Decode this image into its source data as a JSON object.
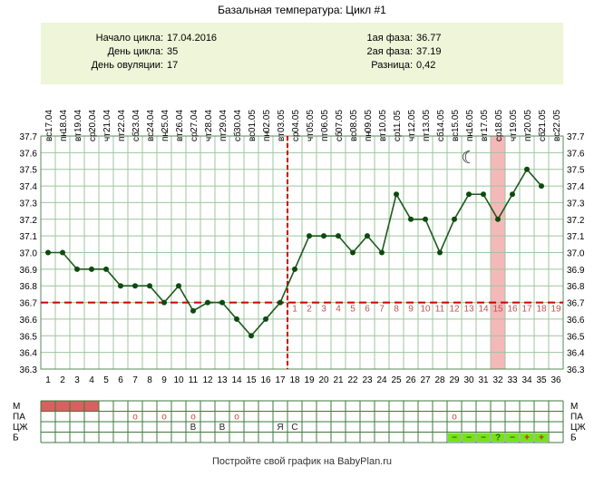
{
  "title": "Базальная температура: Цикл #1",
  "summary": {
    "cycle_start_label": "Начало цикла:",
    "cycle_start_value": "17.04.2016",
    "cycle_day_label": "День цикла:",
    "cycle_day_value": "35",
    "ovulation_day_label": "День овуляции:",
    "ovulation_day_value": "17",
    "phase1_label": "1ая фаза:",
    "phase1_value": "36.77",
    "phase2_label": "2ая фаза:",
    "phase2_value": "37.19",
    "difference_label": "Разница:",
    "difference_value": "0,42"
  },
  "footer": "Постройте свой график на BabyPlan.ru",
  "colors": {
    "line": "#1e5a1e",
    "marker": "#0d4a0d",
    "coverline": "#cc0000",
    "ovulation_line": "#cc0000",
    "highlight": "#f5b8b8",
    "summary_bg": "#eef5d8",
    "grid": "#9fc49f",
    "period": "#d96060",
    "after_ovulation_text": "#c05050",
    "test_cell": "#77e317"
  },
  "chart_data": {
    "type": "line",
    "days": [
      "1",
      "2",
      "3",
      "4",
      "5",
      "6",
      "7",
      "8",
      "9",
      "10",
      "11",
      "12",
      "13",
      "14",
      "15",
      "16",
      "17",
      "18",
      "19",
      "20",
      "21",
      "22",
      "23",
      "24",
      "25",
      "26",
      "27",
      "28",
      "29",
      "30",
      "31",
      "32",
      "33",
      "34",
      "35",
      "36"
    ],
    "weekdays": [
      "вс",
      "пн",
      "вт",
      "ср",
      "чт",
      "пт",
      "сб",
      "вс",
      "пн",
      "вт",
      "ср",
      "чт",
      "пт",
      "сб",
      "вс",
      "пн",
      "вт",
      "ср",
      "чт",
      "пт",
      "сб",
      "вс",
      "пн",
      "вт",
      "ср",
      "чт",
      "пт",
      "сб",
      "вс",
      "пн",
      "вт",
      "ср",
      "чт",
      "пт",
      "сб",
      "вс"
    ],
    "dates": [
      "17.04",
      "18.04",
      "19.04",
      "20.04",
      "21.04",
      "22.04",
      "23.04",
      "24.04",
      "25.04",
      "26.04",
      "27.04",
      "28.04",
      "29.04",
      "30.04",
      "01.05",
      "02.05",
      "03.05",
      "04.05",
      "05.05",
      "06.05",
      "07.05",
      "08.05",
      "09.05",
      "10.05",
      "11.05",
      "12.05",
      "13.05",
      "14.05",
      "15.05",
      "16.05",
      "17.05",
      "18.05",
      "19.05",
      "20.05",
      "21.05",
      "22.05"
    ],
    "temperatures": [
      37.0,
      37.0,
      36.9,
      36.9,
      36.9,
      36.8,
      36.8,
      36.8,
      36.7,
      36.8,
      36.65,
      36.7,
      36.7,
      36.6,
      36.5,
      36.6,
      36.7,
      36.9,
      37.1,
      37.1,
      37.1,
      37.0,
      37.1,
      37.0,
      37.35,
      37.2,
      37.2,
      37.0,
      37.2,
      37.35,
      37.35,
      37.2,
      37.35,
      37.5,
      37.4
    ],
    "ylim": [
      36.3,
      37.7
    ],
    "yticks": [
      "36.3",
      "36.4",
      "36.5",
      "36.6",
      "36.7",
      "36.8",
      "36.9",
      "37.0",
      "37.1",
      "37.2",
      "37.3",
      "37.4",
      "37.5",
      "37.6",
      "37.7"
    ],
    "coverline": 36.7,
    "ovulation_day": 17,
    "highlight_day": 32,
    "post_ovulation_days": [
      "1",
      "2",
      "3",
      "4",
      "5",
      "6",
      "7",
      "8",
      "9",
      "10",
      "11",
      "12",
      "13",
      "14",
      "15",
      "16",
      "17",
      "18",
      "19"
    ],
    "moon_day": 30,
    "moon_glyph": "☾",
    "grid": true
  },
  "rows": {
    "labels": [
      "М",
      "ПА",
      "ЦЖ",
      "Б"
    ],
    "m_days": [
      1,
      2,
      3,
      4
    ],
    "pa_marks": [
      {
        "day": 7,
        "text": "o"
      },
      {
        "day": 9,
        "text": "o"
      },
      {
        "day": 11,
        "text": "o"
      },
      {
        "day": 14,
        "text": "o"
      },
      {
        "day": 29,
        "text": "o"
      }
    ],
    "czh_marks": [
      {
        "day": 11,
        "text": "В"
      },
      {
        "day": 13,
        "text": "В"
      },
      {
        "day": 17,
        "text": "Я"
      },
      {
        "day": 18,
        "text": "С"
      }
    ],
    "b_marks": [
      {
        "day": 29,
        "text": "−"
      },
      {
        "day": 30,
        "text": "−"
      },
      {
        "day": 31,
        "text": "−"
      },
      {
        "day": 32,
        "text": "?"
      },
      {
        "day": 33,
        "text": "−"
      },
      {
        "day": 34,
        "text": "+"
      },
      {
        "day": 35,
        "text": "+"
      }
    ]
  }
}
